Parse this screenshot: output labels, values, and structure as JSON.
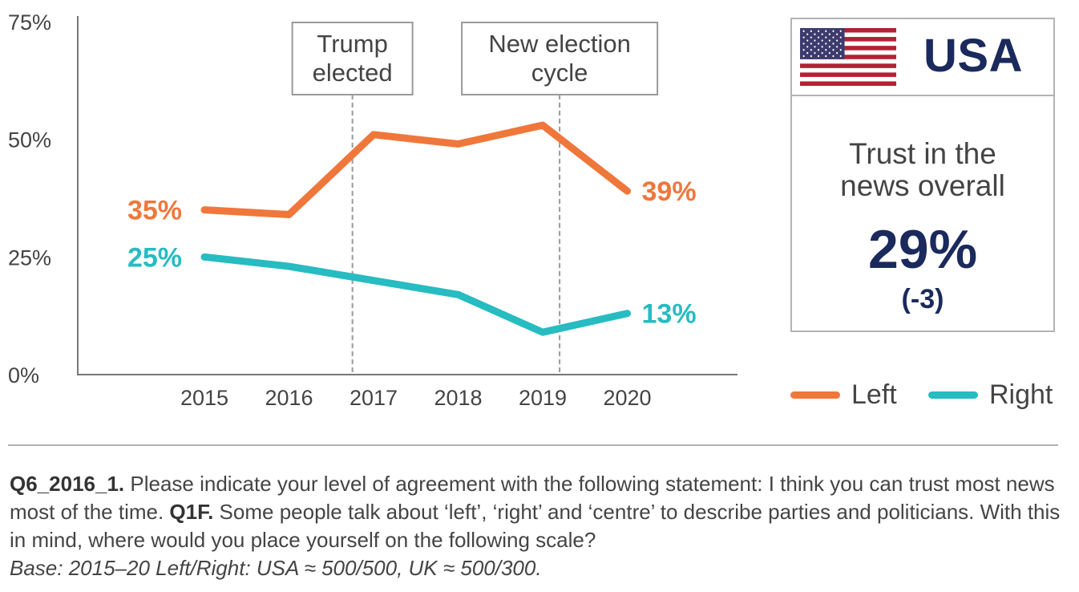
{
  "chart_data": {
    "type": "line",
    "x": [
      "2015",
      "2016",
      "2017",
      "2018",
      "2019",
      "2020"
    ],
    "series": [
      {
        "name": "Left",
        "color": "#f0773b",
        "values": [
          35,
          34,
          51,
          49,
          53,
          39
        ]
      },
      {
        "name": "Right",
        "color": "#26bcc1",
        "values": [
          25,
          23,
          20,
          17,
          9,
          13
        ]
      }
    ],
    "ylim": [
      0,
      75
    ],
    "yticks": [
      "0%",
      "25%",
      "50%",
      "75%"
    ],
    "yticks_values": [
      0,
      25,
      50,
      75
    ],
    "annotations": [
      {
        "lines": [
          "Trump",
          "elected"
        ],
        "at_x": 2016.75
      },
      {
        "lines": [
          "New election",
          "cycle"
        ],
        "at_x": 2019.2
      }
    ],
    "data_labels": [
      {
        "series": "Left",
        "x": "2015",
        "text": "35%",
        "side": "left"
      },
      {
        "series": "Left",
        "x": "2020",
        "text": "39%",
        "side": "right"
      },
      {
        "series": "Right",
        "x": "2015",
        "text": "25%",
        "side": "left"
      },
      {
        "series": "Right",
        "x": "2020",
        "text": "13%",
        "side": "right"
      }
    ],
    "grid": false,
    "legend_position": "bottom-right"
  },
  "panel": {
    "country": "USA",
    "flag_icon": "us-flag-icon",
    "trust_label_line1": "Trust in the",
    "trust_label_line2": "news overall",
    "trust_value": "29%",
    "trust_change": "(-3)"
  },
  "legend": [
    {
      "label": "Left",
      "color": "#f0773b"
    },
    {
      "label": "Right",
      "color": "#26bcc1"
    }
  ],
  "footnote": {
    "q1_code": "Q6_2016_1.",
    "q1_text": " Please indicate your level of agreement with the following statement: I think you can trust most news most of the time. ",
    "q2_code": "Q1F.",
    "q2_text": " Some people talk about ‘left’, ‘right’ and ‘centre’ to describe parties and politicians. With this in mind, where would you place yourself on the following scale?",
    "base": "Base: 2015–20 Left/Right: USA ≈ 500/500, UK ≈ 500/300."
  }
}
